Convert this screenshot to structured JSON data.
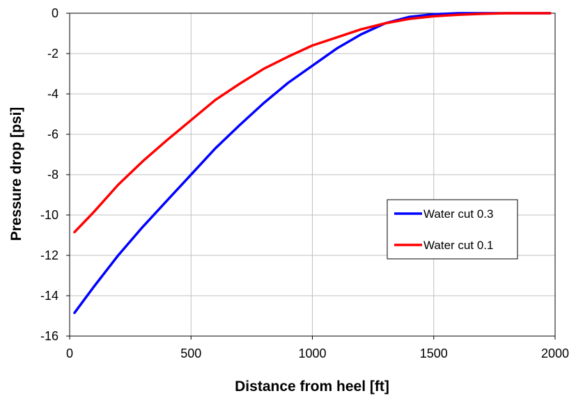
{
  "chart_data": {
    "type": "line",
    "title": "",
    "xlabel": "Distance from heel [ft]",
    "ylabel": "Pressure drop [psi]",
    "xlim": [
      0,
      2000
    ],
    "ylim": [
      -16,
      0
    ],
    "x_ticks": [
      0,
      500,
      1000,
      1500,
      2000
    ],
    "y_ticks": [
      0,
      -2,
      -4,
      -6,
      -8,
      -10,
      -12,
      -14,
      -16
    ],
    "grid": true,
    "legend_position": "right",
    "series": [
      {
        "name": "Water cut 0.3",
        "color": "#0000ff",
        "points": [
          [
            20,
            -14.85
          ],
          [
            100,
            -13.55
          ],
          [
            200,
            -12.0
          ],
          [
            300,
            -10.6
          ],
          [
            400,
            -9.3
          ],
          [
            500,
            -8.0
          ],
          [
            600,
            -6.7
          ],
          [
            700,
            -5.55
          ],
          [
            800,
            -4.45
          ],
          [
            900,
            -3.45
          ],
          [
            1000,
            -2.6
          ],
          [
            1100,
            -1.75
          ],
          [
            1200,
            -1.05
          ],
          [
            1300,
            -0.5
          ],
          [
            1400,
            -0.18
          ],
          [
            1500,
            -0.05
          ],
          [
            1600,
            0.0
          ],
          [
            1800,
            0.0
          ],
          [
            1980,
            0.0
          ]
        ]
      },
      {
        "name": "Water cut 0.1",
        "color": "#ff0000",
        "points": [
          [
            20,
            -10.85
          ],
          [
            100,
            -9.85
          ],
          [
            200,
            -8.5
          ],
          [
            300,
            -7.35
          ],
          [
            400,
            -6.3
          ],
          [
            500,
            -5.3
          ],
          [
            600,
            -4.3
          ],
          [
            700,
            -3.5
          ],
          [
            800,
            -2.75
          ],
          [
            900,
            -2.15
          ],
          [
            1000,
            -1.6
          ],
          [
            1100,
            -1.2
          ],
          [
            1200,
            -0.8
          ],
          [
            1300,
            -0.5
          ],
          [
            1400,
            -0.28
          ],
          [
            1500,
            -0.15
          ],
          [
            1600,
            -0.08
          ],
          [
            1700,
            -0.03
          ],
          [
            1800,
            0.0
          ],
          [
            1980,
            0.0
          ]
        ]
      }
    ]
  }
}
